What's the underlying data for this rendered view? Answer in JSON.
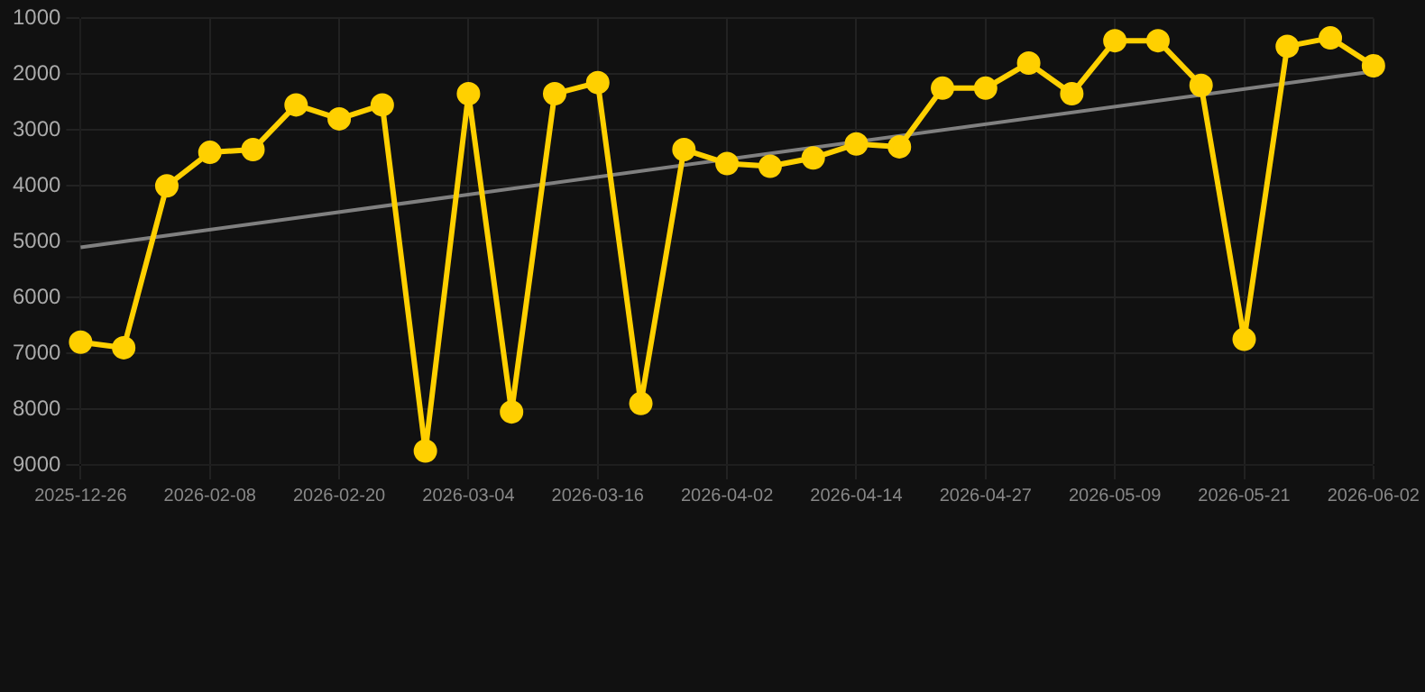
{
  "chart_data": {
    "type": "line",
    "categories": [
      "2025-12-26",
      null,
      null,
      "2026-02-08",
      null,
      null,
      "2026-02-20",
      null,
      null,
      "2026-03-04",
      null,
      null,
      "2026-03-16",
      null,
      null,
      "2026-04-02",
      null,
      null,
      "2026-04-14",
      null,
      null,
      "2026-04-27",
      null,
      null,
      "2026-05-09",
      null,
      null,
      "2026-05-21",
      null,
      null,
      "2026-06-02"
    ],
    "series": [
      {
        "color": "#ffd000",
        "marker": "circle",
        "values": [
          6800,
          6900,
          4000,
          3400,
          3350,
          2550,
          2800,
          2550,
          8750,
          2350,
          8050,
          2350,
          2150,
          7900,
          3350,
          3600,
          3650,
          3500,
          3250,
          3300,
          2250,
          2250,
          1800,
          2350,
          1400,
          1400,
          2200,
          6750,
          1500,
          1350,
          1850
        ]
      },
      {
        "type": "line",
        "color": "#808080",
        "marker": "none",
        "values": [
          5100,
          null,
          null,
          null,
          null,
          null,
          null,
          null,
          null,
          null,
          null,
          null,
          null,
          null,
          null,
          null,
          null,
          null,
          null,
          null,
          null,
          null,
          null,
          null,
          null,
          null,
          null,
          null,
          null,
          null,
          1950
        ]
      }
    ],
    "ylim": [
      9000,
      1000
    ],
    "yticks": [
      1000,
      2000,
      3000,
      4000,
      5000,
      6000,
      7000,
      8000,
      9000
    ],
    "grid": true,
    "legend": false
  }
}
